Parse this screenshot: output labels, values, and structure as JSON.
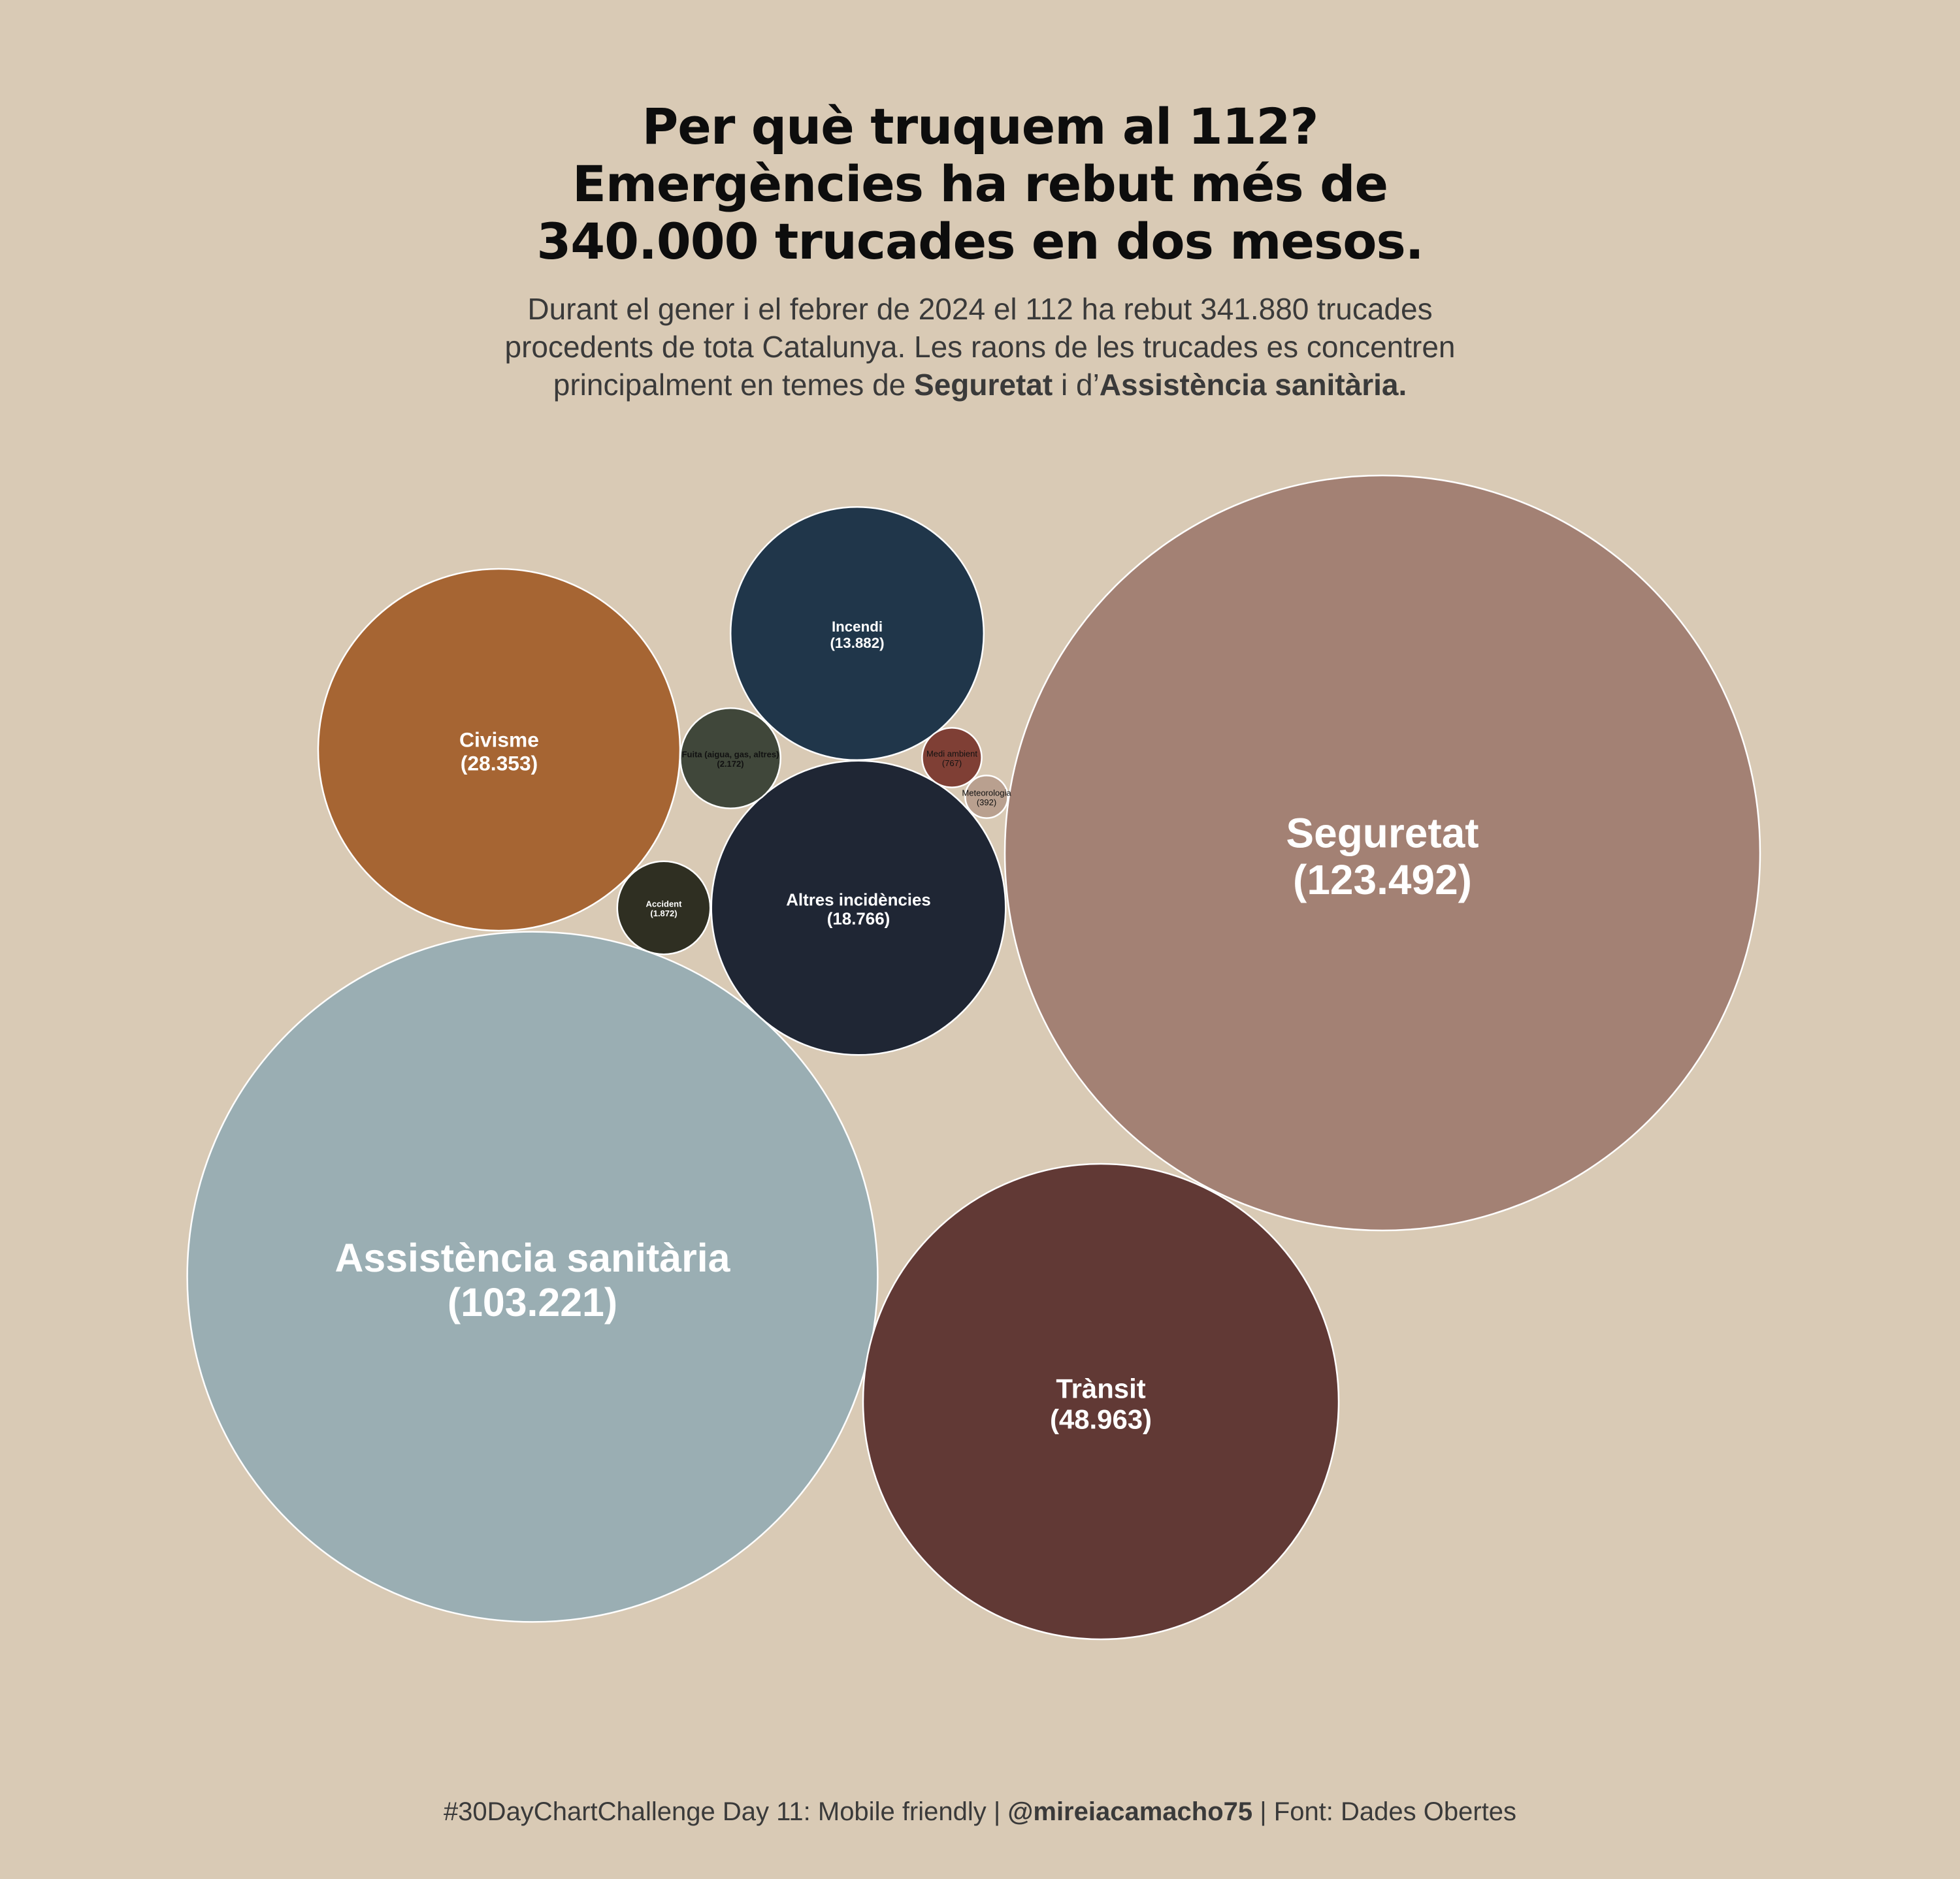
{
  "title": {
    "line1": "Per què truquem al 112?",
    "line2": "Emergències ha rebut més de",
    "line3": "340.000 trucades en dos mesos."
  },
  "subtitle": {
    "line1": "Durant el gener i el febrer de 2024 el 112 ha rebut 341.880 trucades",
    "line2": "procedents de tota Catalunya. Les raons de les trucades es concentren",
    "line3_pre": "principalment en temes de ",
    "line3_bold1": "Seguretat",
    "line3_mid": " i d’",
    "line3_bold2": "Assistència sanitària."
  },
  "footer": {
    "pre": "#30DayChartChallenge Day 11: Mobile friendly | ",
    "handle": "@mireiacamacho75",
    "post": " | Font: Dades Obertes"
  },
  "chart_data": {
    "type": "bubble",
    "title": "Per què truquem al 112? Emergències ha rebut més de 340.000 trucades en dos mesos.",
    "total_calls": "341.880",
    "categories": [
      "Seguretat",
      "Assistència sanitària",
      "Trànsit",
      "Civisme",
      "Altres incidències",
      "Incendi",
      "Fuita (aigua, gas, altres)",
      "Accident",
      "Medi ambient",
      "Meteorologia"
    ],
    "values": [
      123492,
      103221,
      48963,
      28353,
      18766,
      13882,
      2172,
      1872,
      767,
      392
    ],
    "value_labels": [
      "(123.492)",
      "(103.221)",
      "(48.963)",
      "(28.353)",
      "(18.766)",
      "(13.882)",
      "(2.172)",
      "(1.872)",
      "(767)",
      "(392)"
    ],
    "colors": [
      "#a38174",
      "#9aaeb3",
      "#613935",
      "#a66533",
      "#1f2634",
      "#20364a",
      "#40473a",
      "#2f2f22",
      "#7f3f35",
      "#b9a08f"
    ],
    "label_colors": [
      "#ffffff",
      "#ffffff",
      "#ffffff",
      "#ffffff",
      "#ffffff",
      "#ffffff",
      "#111111",
      "#ffffff",
      "#111111",
      "#111111"
    ],
    "stroke_color": "#ffffff"
  }
}
